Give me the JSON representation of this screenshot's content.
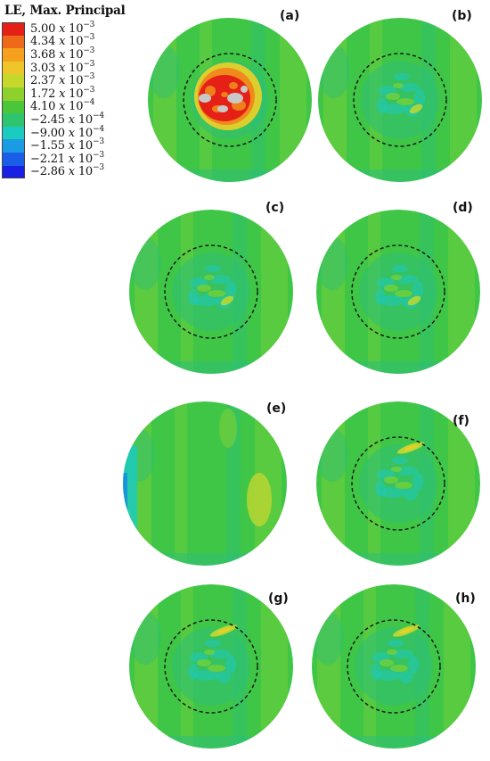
{
  "legend": {
    "title": "LE, Max. Principal",
    "entries": [
      {
        "mantissa": "5.00",
        "exp": "−3",
        "color": "#e52016"
      },
      {
        "mantissa": "4.34",
        "exp": "−3",
        "color": "#ef6a18"
      },
      {
        "mantissa": "3.68",
        "exp": "−3",
        "color": "#f5a11e"
      },
      {
        "mantissa": "3.03",
        "exp": "−3",
        "color": "#eec62a"
      },
      {
        "mantissa": "2.37",
        "exp": "−3",
        "color": "#c7d82c"
      },
      {
        "mantissa": "1.72",
        "exp": "−3",
        "color": "#8fd12c"
      },
      {
        "mantissa": "4.10",
        "exp": "−4",
        "color": "#4cc639"
      },
      {
        "mantissa": "−2.45",
        "exp": "−4",
        "color": "#2fc46e"
      },
      {
        "mantissa": "−9.00",
        "exp": "−4",
        "color": "#1ccbc0"
      },
      {
        "mantissa": "−1.55",
        "exp": "−3",
        "color": "#1a9be4"
      },
      {
        "mantissa": "−2.21",
        "exp": "−3",
        "color": "#1a5de6"
      },
      {
        "mantissa": "−2.86",
        "exp": "−3",
        "color": "#1a1fe4"
      }
    ],
    "times": "x",
    "base": "10"
  },
  "panels": [
    {
      "id": "a",
      "label": "(a)",
      "variant": "hot"
    },
    {
      "id": "b",
      "label": "(b)",
      "variant": "mild"
    },
    {
      "id": "c",
      "label": "(c)",
      "variant": "mild"
    },
    {
      "id": "d",
      "label": "(d)",
      "variant": "mild"
    },
    {
      "id": "e",
      "label": "(e)",
      "variant": "plain"
    },
    {
      "id": "f",
      "label": "(f)",
      "variant": "streak"
    },
    {
      "id": "g",
      "label": "(g)",
      "variant": "streak"
    },
    {
      "id": "h",
      "label": "(h)",
      "variant": "streak"
    }
  ],
  "colors": {
    "base_green": "#3fc646",
    "light_green": "#74cf3a",
    "teal_green": "#2fbf78",
    "cyan": "#1ccbc0",
    "yellow_green": "#b9d632",
    "red": "#e52016",
    "orange": "#f08a1c",
    "yellow": "#e6d02a",
    "gray": "#c8c8c8",
    "blue": "#1a8fe0"
  }
}
